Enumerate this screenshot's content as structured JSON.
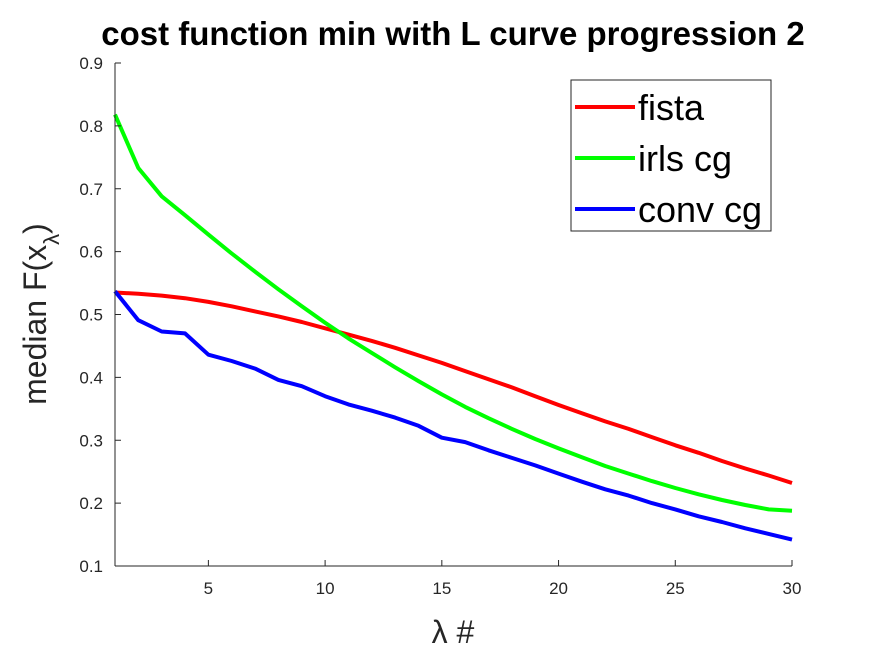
{
  "chart_data": {
    "type": "line",
    "title": "cost function min with L curve progression 2",
    "xlabel": "λ #",
    "ylabel": "median F(x",
    "ylabel_subscript": "λ",
    "ylabel_suffix": ")",
    "xlim": [
      1,
      30
    ],
    "ylim": [
      0.1,
      0.9
    ],
    "xticks": [
      5,
      10,
      15,
      20,
      25,
      30
    ],
    "yticks": [
      0.1,
      0.2,
      0.3,
      0.4,
      0.5,
      0.6,
      0.7,
      0.8,
      0.9
    ],
    "xtick_labels": [
      "5",
      "10",
      "15",
      "20",
      "25",
      "30"
    ],
    "ytick_labels": [
      "0.1",
      "0.2",
      "0.3",
      "0.4",
      "0.5",
      "0.6",
      "0.7",
      "0.8",
      "0.9"
    ],
    "legend_position": "top-right",
    "grid": false,
    "x": [
      1,
      2,
      3,
      4,
      5,
      6,
      7,
      8,
      9,
      10,
      11,
      12,
      13,
      14,
      15,
      16,
      17,
      18,
      19,
      20,
      21,
      22,
      23,
      24,
      25,
      26,
      27,
      28,
      29,
      30
    ],
    "series": [
      {
        "name": "fista",
        "color": "#ff0000",
        "values": [
          0.535,
          0.533,
          0.53,
          0.526,
          0.52,
          0.513,
          0.505,
          0.497,
          0.488,
          0.478,
          0.468,
          0.458,
          0.447,
          0.435,
          0.423,
          0.41,
          0.397,
          0.384,
          0.37,
          0.356,
          0.343,
          0.33,
          0.318,
          0.305,
          0.292,
          0.28,
          0.267,
          0.255,
          0.244,
          0.232
        ]
      },
      {
        "name": "irls cg",
        "color": "#00ff00",
        "values": [
          0.818,
          0.733,
          0.688,
          0.658,
          0.627,
          0.597,
          0.568,
          0.54,
          0.513,
          0.487,
          0.462,
          0.439,
          0.416,
          0.394,
          0.373,
          0.353,
          0.335,
          0.318,
          0.302,
          0.287,
          0.273,
          0.259,
          0.247,
          0.235,
          0.224,
          0.214,
          0.205,
          0.197,
          0.19,
          0.188
        ]
      },
      {
        "name": "conv cg",
        "color": "#0000ff",
        "values": [
          0.537,
          0.491,
          0.473,
          0.47,
          0.436,
          0.426,
          0.414,
          0.396,
          0.386,
          0.37,
          0.357,
          0.347,
          0.336,
          0.323,
          0.304,
          0.297,
          0.284,
          0.272,
          0.26,
          0.247,
          0.234,
          0.222,
          0.212,
          0.2,
          0.19,
          0.179,
          0.17,
          0.16,
          0.151,
          0.142
        ]
      }
    ]
  }
}
